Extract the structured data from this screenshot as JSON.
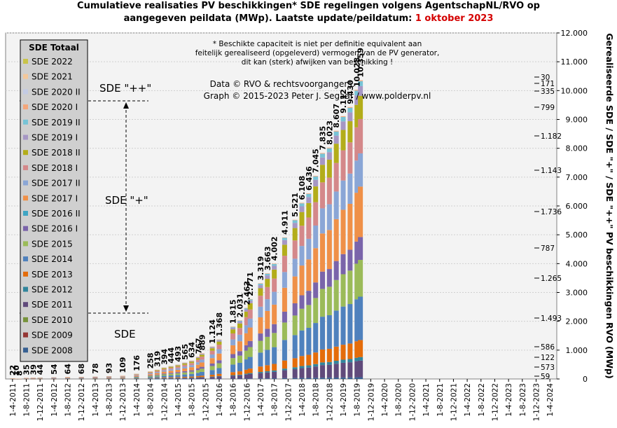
{
  "title": {
    "line1": "Cumulatieve realisaties PV beschikkingen*  SDE regelingen volgens AgentschapNL/RVO  op",
    "line2_prefix": "aangegeven peildata (MWp). Laatste update/peildatum: ",
    "line2_date": "1 oktober 2023"
  },
  "notes": {
    "disclaimer": [
      "* Beschikte capaciteit is niet per definitie equivalent aan",
      "feitelijk gerealiseerd (opgeleverd) vermogen van de PV generator,",
      "dit kan (sterk) afwijken van beschikking !"
    ],
    "credit1": "Data © RVO & rechtsvoorgangers.",
    "credit2": "Graph  © 2015-2023  Peter J. Segaar / www.polderpv.nl"
  },
  "annotations": {
    "sde_pp": "SDE \"++\"",
    "sde_p": "SDE \"+\"",
    "sde": "SDE"
  },
  "y_axis_title": "Gerealiseerde SDE / SDE \"+\" / SDE \"++\" PV beschikkingen RVO (MWp)",
  "legend": {
    "title": "SDE Totaal",
    "items": [
      {
        "label": "SDE 2022",
        "color": "#c9c44a"
      },
      {
        "label": "SDE 2021",
        "color": "#f3c79a"
      },
      {
        "label": "SDE 2020 II",
        "color": "#c3cbe4"
      },
      {
        "label": "SDE 2020 I",
        "color": "#f4a67a"
      },
      {
        "label": "SDE 2019 II",
        "color": "#77c3d6"
      },
      {
        "label": "SDE 2019 I",
        "color": "#a697c4"
      },
      {
        "label": "SDE 2018 II",
        "color": "#b3ad1a",
        "text_color": "#cc0000"
      },
      {
        "label": "SDE 2018 I",
        "color": "#d4888a"
      },
      {
        "label": "SDE 2017 II",
        "color": "#8aa6d6"
      },
      {
        "label": "SDE 2017 I",
        "color": "#ef9048"
      },
      {
        "label": "SDE 2016 II",
        "color": "#3fa5c3"
      },
      {
        "label": "SDE 2016 I",
        "color": "#7a64aa"
      },
      {
        "label": "SDE 2015",
        "color": "#9bbb59"
      },
      {
        "label": "SDE 2014",
        "color": "#4f81bd"
      },
      {
        "label": "SDE 2013",
        "color": "#e46c0a"
      },
      {
        "label": "SDE 2012",
        "color": "#31859c"
      },
      {
        "label": "SDE 2011",
        "color": "#604a7b"
      },
      {
        "label": "SDE 2010",
        "color": "#77933c"
      },
      {
        "label": "SDE 2009",
        "color": "#953735"
      },
      {
        "label": "SDE 2008",
        "color": "#376092"
      }
    ]
  },
  "increments": [
    {
      "value": "30",
      "color": "#000000"
    },
    {
      "value": "171",
      "color": "#000000"
    },
    {
      "value": "335",
      "color": "#000000"
    },
    {
      "value": "799",
      "color": "#000000"
    },
    {
      "value": "1.182",
      "color": "#000000"
    },
    {
      "value": "1.143",
      "color": "#000000"
    },
    {
      "value": "1.736",
      "color": "#cc0000"
    },
    {
      "value": "787",
      "color": "#000000"
    },
    {
      "value": "1.265",
      "color": "#000000"
    },
    {
      "value": "1.493",
      "color": "#000000"
    },
    {
      "value": "586",
      "color": "#000000"
    },
    {
      "value": "122",
      "color": "#000000"
    },
    {
      "value": "573",
      "color": "#000000"
    },
    {
      "value": "59",
      "color": "#000000"
    }
  ],
  "chart_data": {
    "type": "bar",
    "stacked": true,
    "y_axis_position": "right",
    "ylim": [
      0,
      12000
    ],
    "yticks": [
      "0",
      "1.000",
      "2.000",
      "3.000",
      "4.000",
      "5.000",
      "6.000",
      "7.000",
      "8.000",
      "9.000",
      "10.000",
      "11.000",
      "12.000"
    ],
    "x_tick_labels": [
      "1-4-2011",
      "1-8-2011",
      "1-12-2011",
      "1-4-2012",
      "1-8-2012",
      "1-12-2012",
      "1-4-2013",
      "1-8-2013",
      "1-12-2013",
      "1-4-2014",
      "1-8-2014",
      "1-12-2014",
      "1-4-2015",
      "1-8-2015",
      "1-12-2015",
      "1-4-2016",
      "1-8-2016",
      "1-12-2016",
      "1-4-2017",
      "1-8-2017",
      "1-12-2017",
      "1-4-2018",
      "1-8-2018",
      "1-12-2018",
      "1-4-2019",
      "1-8-2019",
      "1-12-2019",
      "1-4-2020",
      "1-8-2020",
      "1-12-2020",
      "1-4-2021",
      "1-8-2021",
      "1-12-2021",
      "1-4-2022",
      "1-8-2022",
      "1-12-2022",
      "1-4-2023",
      "1-8-2023",
      "1-12-2023",
      "1-4-2024"
    ],
    "series_order": [
      "SDE 2008",
      "SDE 2009",
      "SDE 2010",
      "SDE 2011",
      "SDE 2012",
      "SDE 2013",
      "SDE 2014",
      "SDE 2015",
      "SDE 2016 I",
      "SDE 2016 II",
      "SDE 2017 I",
      "SDE 2017 II",
      "SDE 2018 I",
      "SDE 2018 II",
      "SDE 2019 I",
      "SDE 2019 II",
      "SDE 2020 I",
      "SDE 2020 II",
      "SDE 2021",
      "SDE 2022"
    ],
    "bars": [
      {
        "x": 0.0,
        "total": 22,
        "label": "22"
      },
      {
        "x": 0.25,
        "total": 10,
        "label": "10"
      },
      {
        "x": 0.5,
        "total": 8,
        "label": "8"
      },
      {
        "x": 1.0,
        "total": 35,
        "label": "35"
      },
      {
        "x": 1.5,
        "total": 39,
        "label": "39"
      },
      {
        "x": 2.0,
        "total": 44,
        "label": "44"
      },
      {
        "x": 3.0,
        "total": 54,
        "label": "54"
      },
      {
        "x": 4.0,
        "total": 64,
        "label": "64"
      },
      {
        "x": 5.0,
        "total": 68,
        "label": "68"
      },
      {
        "x": 6.0,
        "total": 78,
        "label": "78"
      },
      {
        "x": 7.0,
        "total": 93,
        "label": "93"
      },
      {
        "x": 8.0,
        "total": 109,
        "label": "109"
      },
      {
        "x": 9.0,
        "total": 176,
        "label": "176"
      },
      {
        "x": 10.0,
        "total": 258,
        "label": "258"
      },
      {
        "x": 10.5,
        "total": 319,
        "label": "319"
      },
      {
        "x": 11.0,
        "total": 394,
        "label": "394"
      },
      {
        "x": 11.5,
        "total": 444,
        "label": "444"
      },
      {
        "x": 12.0,
        "total": 493,
        "label": "493"
      },
      {
        "x": 12.5,
        "total": 565,
        "label": "565"
      },
      {
        "x": 13.0,
        "total": 634,
        "label": "634"
      },
      {
        "x": 13.5,
        "total": 767,
        "label": "767"
      },
      {
        "x": 13.75,
        "total": 889,
        "label": "889"
      },
      {
        "x": 14.5,
        "total": 1124,
        "label": "1.124"
      },
      {
        "x": 15.0,
        "total": 1368,
        "label": "1.368"
      },
      {
        "x": 16.0,
        "total": 1815,
        "label": "1.815"
      },
      {
        "x": 16.5,
        "total": 2031,
        "label": "2.031"
      },
      {
        "x": 17.0,
        "total": 2463,
        "label": "2.463"
      },
      {
        "x": 17.25,
        "total": 2771,
        "label": "2.771"
      },
      {
        "x": 18.0,
        "total": 3319,
        "label": "3.319"
      },
      {
        "x": 18.5,
        "total": 3663,
        "label": "3.663"
      },
      {
        "x": 19.0,
        "total": 4002,
        "label": "4.002"
      },
      {
        "x": 19.75,
        "total": 4911,
        "label": "4.911"
      },
      {
        "x": 20.5,
        "total": 5521,
        "label": "5.521"
      },
      {
        "x": 21.0,
        "total": 6108,
        "label": "6.108"
      },
      {
        "x": 21.5,
        "total": 6436,
        "label": "6.436"
      },
      {
        "x": 22.0,
        "total": 7045,
        "label": "7.045"
      },
      {
        "x": 22.5,
        "total": 7835,
        "label": "7.835"
      },
      {
        "x": 23.0,
        "total": 8023,
        "label": "8.023"
      },
      {
        "x": 23.5,
        "total": 8607,
        "label": "8.607"
      },
      {
        "x": 24.0,
        "total": 9112,
        "label": "9.112"
      },
      {
        "x": 24.5,
        "total": 9430,
        "label": "9.430"
      },
      {
        "x": 25.0,
        "total": 10028,
        "label": "10.028"
      },
      {
        "x": 25.25,
        "total": 10359,
        "label": "10.359"
      }
    ],
    "final_composition": [
      59,
      0,
      0,
      573,
      122,
      586,
      1493,
      1265,
      787,
      0,
      1736,
      1143,
      1182,
      799,
      335,
      171,
      30
    ]
  }
}
